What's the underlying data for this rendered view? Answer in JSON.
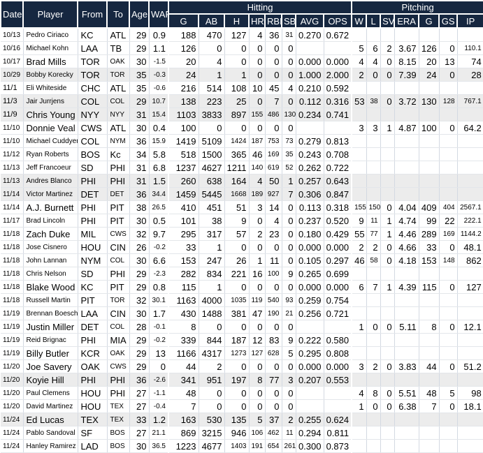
{
  "colors": {
    "header_bg": "#162740",
    "header_text": "#ffffff",
    "row_highlight": "#ececec",
    "grid_line": "#d3d9e2"
  },
  "table": {
    "group_headers": {
      "hitting": "Hitting",
      "pitching": "Pitching"
    },
    "headers": {
      "date": "Date",
      "player": "Player",
      "from": "From",
      "to": "To",
      "age": "Age",
      "war": "WAR",
      "hitting": [
        "G",
        "AB",
        "H",
        "HR",
        "RBI",
        "SB",
        "AVG",
        "OPS"
      ],
      "pitching": [
        "W",
        "L",
        "SV",
        "ERA",
        "G",
        "GS",
        "IP"
      ]
    },
    "rows": [
      [
        "10/13",
        "Pedro Ciriaco",
        "KC",
        "ATL",
        "29",
        "0.9",
        "188",
        "470",
        "127",
        "4",
        "36",
        "31",
        "0.270",
        "0.672",
        "",
        "",
        "",
        "",
        "",
        "",
        ""
      ],
      [
        "10/16",
        "Michael Kohn",
        "LAA",
        "TB",
        "29",
        "1.1",
        "126",
        "0",
        "0",
        "0",
        "0",
        "0",
        "",
        "",
        "5",
        "6",
        "2",
        "3.67",
        "126",
        "0",
        "110.1"
      ],
      [
        "10/17",
        "Brad Mills",
        "TOR",
        "OAK",
        "30",
        "-1.5",
        "20",
        "4",
        "0",
        "0",
        "0",
        "0",
        "0.000",
        "0.000",
        "4",
        "4",
        "0",
        "8.15",
        "20",
        "13",
        "74"
      ],
      [
        "10/29",
        "Bobby Korecky",
        "TOR",
        "TOR",
        "35",
        "-0.3",
        "24",
        "1",
        "1",
        "0",
        "0",
        "0",
        "1.000",
        "2.000",
        "2",
        "0",
        "0",
        "7.39",
        "24",
        "0",
        "28"
      ],
      [
        "11/1",
        "Eli Whiteside",
        "CHC",
        "ATL",
        "35",
        "-0.6",
        "216",
        "514",
        "108",
        "10",
        "45",
        "4",
        "0.210",
        "0.592",
        "",
        "",
        "",
        "",
        "",
        "",
        ""
      ],
      [
        "11/3",
        "Jair Jurrjens",
        "COL",
        "COL",
        "29",
        "10.7",
        "138",
        "223",
        "25",
        "0",
        "7",
        "0",
        "0.112",
        "0.316",
        "53",
        "38",
        "0",
        "3.72",
        "130",
        "128",
        "767.1"
      ],
      [
        "11/9",
        "Chris Young",
        "NYY",
        "NYY",
        "31",
        "15.4",
        "1103",
        "3833",
        "897",
        "155",
        "486",
        "130",
        "0.234",
        "0.741",
        "",
        "",
        "",
        "",
        "",
        "",
        ""
      ],
      [
        "11/10",
        "Donnie Veal",
        "CWS",
        "ATL",
        "30",
        "0.4",
        "100",
        "0",
        "0",
        "0",
        "0",
        "0",
        "",
        "",
        "3",
        "3",
        "1",
        "4.87",
        "100",
        "0",
        "64.2"
      ],
      [
        "11/10",
        "Michael Cuddyer",
        "COL",
        "NYM",
        "36",
        "15.9",
        "1419",
        "5109",
        "1424",
        "187",
        "753",
        "73",
        "0.279",
        "0.813",
        "",
        "",
        "",
        "",
        "",
        "",
        ""
      ],
      [
        "11/12",
        "Ryan Roberts",
        "BOS",
        "Kc",
        "34",
        "5.8",
        "518",
        "1500",
        "365",
        "46",
        "169",
        "35",
        "0.243",
        "0.708",
        "",
        "",
        "",
        "",
        "",
        "",
        ""
      ],
      [
        "11/13",
        "Jeff Francoeur",
        "SD",
        "PHI",
        "31",
        "6.8",
        "1237",
        "4627",
        "1211",
        "140",
        "619",
        "52",
        "0.262",
        "0.722",
        "",
        "",
        "",
        "",
        "",
        "",
        ""
      ],
      [
        "11/13",
        "Andres Blanco",
        "PHI",
        "PHI",
        "31",
        "1.5",
        "260",
        "638",
        "164",
        "4",
        "50",
        "1",
        "0.257",
        "0.643",
        "",
        "",
        "",
        "",
        "",
        "",
        ""
      ],
      [
        "11/14",
        "Victor Martinez",
        "DET",
        "DET",
        "36",
        "34.4",
        "1459",
        "5445",
        "1668",
        "189",
        "927",
        "7",
        "0.306",
        "0.847",
        "",
        "",
        "",
        "",
        "",
        "",
        ""
      ],
      [
        "11/14",
        "A.J. Burnett",
        "PHI",
        "PIT",
        "38",
        "26.5",
        "410",
        "451",
        "51",
        "3",
        "14",
        "0",
        "0.113",
        "0.318",
        "155",
        "150",
        "0",
        "4.04",
        "409",
        "404",
        "2567.1"
      ],
      [
        "11/17",
        "Brad Lincoln",
        "PHI",
        "PIT",
        "30",
        "0.5",
        "101",
        "38",
        "9",
        "0",
        "4",
        "0",
        "0.237",
        "0.520",
        "9",
        "11",
        "1",
        "4.74",
        "99",
        "22",
        "222.1"
      ],
      [
        "11/18",
        "Zach Duke",
        "MIL",
        "CWS",
        "32",
        "9.7",
        "295",
        "317",
        "57",
        "2",
        "23",
        "0",
        "0.180",
        "0.429",
        "55",
        "77",
        "1",
        "4.46",
        "289",
        "169",
        "1144.2"
      ],
      [
        "11/18",
        "Jose Cisnero",
        "HOU",
        "CIN",
        "26",
        "-0.2",
        "33",
        "1",
        "0",
        "0",
        "0",
        "0",
        "0.000",
        "0.000",
        "2",
        "2",
        "0",
        "4.66",
        "33",
        "0",
        "48.1"
      ],
      [
        "11/18",
        "John Lannan",
        "NYM",
        "COL",
        "30",
        "6.6",
        "153",
        "247",
        "26",
        "1",
        "11",
        "0",
        "0.105",
        "0.297",
        "46",
        "58",
        "0",
        "4.18",
        "153",
        "148",
        "862"
      ],
      [
        "11/18",
        "Chris Nelson",
        "SD",
        "PHI",
        "29",
        "-2.3",
        "282",
        "834",
        "221",
        "16",
        "100",
        "9",
        "0.265",
        "0.699",
        "",
        "",
        "",
        "",
        "",
        "",
        ""
      ],
      [
        "11/18",
        "Blake Wood",
        "KC",
        "PIT",
        "29",
        "0.8",
        "115",
        "1",
        "0",
        "0",
        "0",
        "0",
        "0.000",
        "0.000",
        "6",
        "7",
        "1",
        "4.39",
        "115",
        "0",
        "127"
      ],
      [
        "11/18",
        "Russell Martin",
        "PIT",
        "TOR",
        "32",
        "30.1",
        "1163",
        "4000",
        "1035",
        "119",
        "540",
        "93",
        "0.259",
        "0.754",
        "",
        "",
        "",
        "",
        "",
        "",
        ""
      ],
      [
        "11/19",
        "Brennan Boesch",
        "LAA",
        "CIN",
        "30",
        "1.7",
        "430",
        "1488",
        "381",
        "47",
        "190",
        "21",
        "0.256",
        "0.721",
        "",
        "",
        "",
        "",
        "",
        "",
        ""
      ],
      [
        "11/19",
        "Justin Miller",
        "DET",
        "COL",
        "28",
        "-0.1",
        "8",
        "0",
        "0",
        "0",
        "0",
        "0",
        "",
        "",
        "1",
        "0",
        "0",
        "5.11",
        "8",
        "0",
        "12.1"
      ],
      [
        "11/19",
        "Reid Brignac",
        "PHI",
        "MIA",
        "29",
        "-0.2",
        "339",
        "844",
        "187",
        "12",
        "83",
        "9",
        "0.222",
        "0.580",
        "",
        "",
        "",
        "",
        "",
        "",
        ""
      ],
      [
        "11/19",
        "Billy Butler",
        "KCR",
        "OAK",
        "29",
        "13",
        "1166",
        "4317",
        "1273",
        "127",
        "628",
        "5",
        "0.295",
        "0.808",
        "",
        "",
        "",
        "",
        "",
        "",
        ""
      ],
      [
        "11/20",
        "Joe Savery",
        "OAK",
        "CWS",
        "29",
        "0",
        "44",
        "2",
        "0",
        "0",
        "0",
        "0",
        "0.000",
        "0.000",
        "3",
        "2",
        "0",
        "3.83",
        "44",
        "0",
        "51.2"
      ],
      [
        "11/20",
        "Koyie Hill",
        "PHI",
        "PHI",
        "36",
        "-2.6",
        "341",
        "951",
        "197",
        "8",
        "77",
        "3",
        "0.207",
        "0.553",
        "",
        "",
        "",
        "",
        "",
        "",
        ""
      ],
      [
        "11/20",
        "Paul Clemens",
        "HOU",
        "PHI",
        "27",
        "-1.1",
        "48",
        "0",
        "0",
        "0",
        "0",
        "0",
        "",
        "",
        "4",
        "8",
        "0",
        "5.51",
        "48",
        "5",
        "98"
      ],
      [
        "11/20",
        "David Martinez",
        "HOU",
        "TEX",
        "27",
        "-0.4",
        "7",
        "0",
        "0",
        "0",
        "0",
        "0",
        "",
        "",
        "1",
        "0",
        "0",
        "6.38",
        "7",
        "0",
        "18.1"
      ],
      [
        "11/24",
        "Ed Lucas",
        "TEX",
        "TEX",
        "33",
        "1.2",
        "163",
        "530",
        "135",
        "5",
        "37",
        "2",
        "0.255",
        "0.624",
        "",
        "",
        "",
        "",
        "",
        "",
        ""
      ],
      [
        "11/24",
        "Pablo Sandoval",
        "SF",
        "BOS",
        "27",
        "21.1",
        "869",
        "3215",
        "946",
        "106",
        "462",
        "11",
        "0.294",
        "0.811",
        "",
        "",
        "",
        "",
        "",
        "",
        ""
      ],
      [
        "11/24",
        "Hanley Ramirez",
        "LAD",
        "BOS",
        "30",
        "36.5",
        "1223",
        "4677",
        "1403",
        "191",
        "654",
        "261",
        "0.300",
        "0.873",
        "",
        "",
        "",
        "",
        "",
        "",
        ""
      ]
    ]
  }
}
